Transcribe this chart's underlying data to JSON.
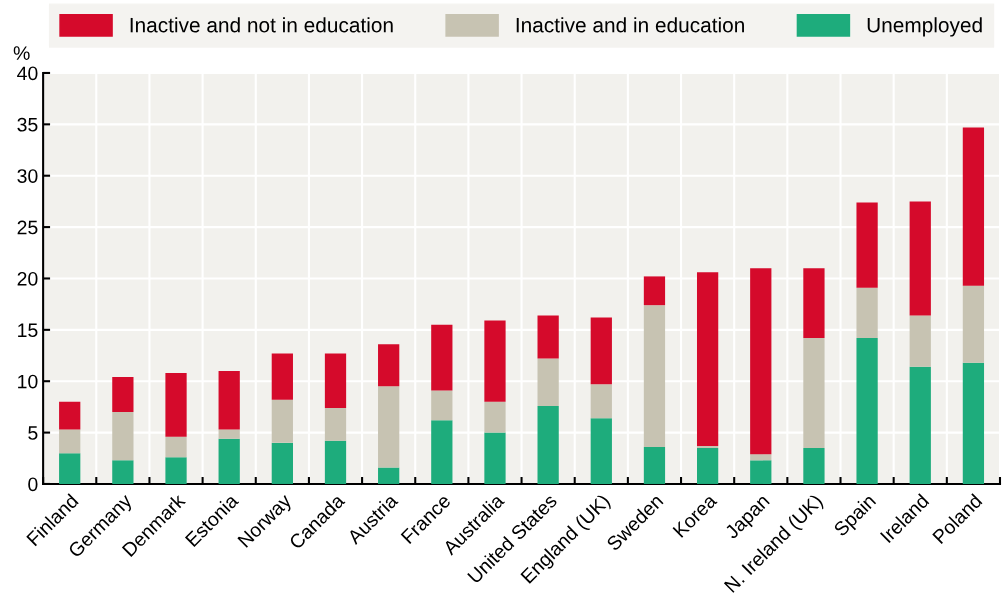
{
  "chart_data": {
    "type": "bar",
    "stacked": true,
    "ylabel": "%",
    "categories": [
      "Finland",
      "Germany",
      "Denmark",
      "Estonia",
      "Norway",
      "Canada",
      "Austria",
      "France",
      "Australia",
      "United States",
      "England (UK)",
      "Sweden",
      "Korea",
      "Japan",
      "N. Ireland (UK)",
      "Spain",
      "Ireland",
      "Poland"
    ],
    "series": [
      {
        "name": "Unemployed",
        "color": "#1eac7c",
        "values": [
          3.0,
          2.3,
          2.6,
          4.4,
          4.0,
          4.2,
          1.6,
          6.2,
          5.0,
          7.6,
          6.4,
          3.6,
          3.5,
          2.3,
          3.5,
          14.2,
          11.4,
          11.8
        ]
      },
      {
        "name": "Inactive and in education",
        "color": "#c7c3b2",
        "values": [
          2.3,
          4.7,
          2.0,
          0.9,
          4.2,
          3.2,
          7.9,
          2.9,
          3.0,
          4.6,
          3.3,
          13.8,
          0.2,
          0.6,
          10.7,
          4.9,
          5.0,
          7.5
        ]
      },
      {
        "name": "Inactive and not in education",
        "color": "#d50a2b",
        "values": [
          2.7,
          3.4,
          6.2,
          5.7,
          4.5,
          5.3,
          4.1,
          6.4,
          7.9,
          4.2,
          6.5,
          2.8,
          16.9,
          18.1,
          6.8,
          8.3,
          11.1,
          15.4
        ]
      }
    ],
    "ylim": [
      0,
      40
    ],
    "yticks": [
      0,
      5,
      10,
      15,
      20,
      25,
      30,
      35,
      40
    ],
    "grid": true,
    "legend": "top"
  }
}
